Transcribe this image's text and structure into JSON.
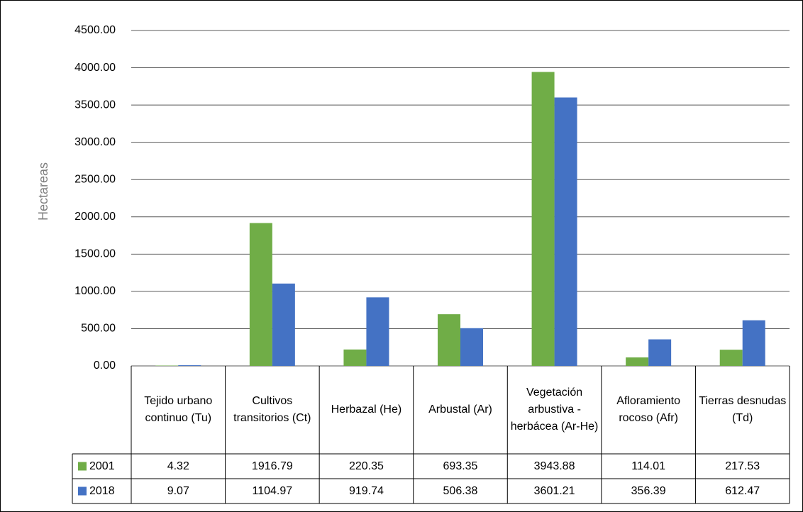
{
  "chart_data": {
    "type": "bar",
    "y_label": "Hectareas",
    "categories": [
      "Tejido urbano continuo (Tu)",
      "Cultivos transitorios (Ct)",
      "Herbazal (He)",
      "Arbustal (Ar)",
      "Vegetación arbustiva - herbácea (Ar-He)",
      "Afloramiento rocoso (Afr)",
      "Tierras desnudas (Td)"
    ],
    "series": [
      {
        "name": "2001",
        "color": "#70ad47",
        "values": [
          4.32,
          1916.79,
          220.35,
          693.35,
          3943.88,
          114.01,
          217.53
        ]
      },
      {
        "name": "2018",
        "color": "#4472c4",
        "values": [
          9.07,
          1104.97,
          919.74,
          506.38,
          3601.21,
          356.39,
          612.47
        ]
      }
    ],
    "ylim": [
      0,
      4500
    ],
    "yticks": [
      {
        "value": 0,
        "label": "0.00"
      },
      {
        "value": 500,
        "label": "500.00"
      },
      {
        "value": 1000,
        "label": "1000.00"
      },
      {
        "value": 1500,
        "label": "1500.00"
      },
      {
        "value": 2000,
        "label": "2000.00"
      },
      {
        "value": 2500,
        "label": "2500.00"
      },
      {
        "value": 3000,
        "label": "3000.00"
      },
      {
        "value": 3500,
        "label": "3500.00"
      },
      {
        "value": 4000,
        "label": "4000.00"
      },
      {
        "value": 4500,
        "label": "4500.00"
      }
    ],
    "grid": true,
    "data_table": true
  }
}
